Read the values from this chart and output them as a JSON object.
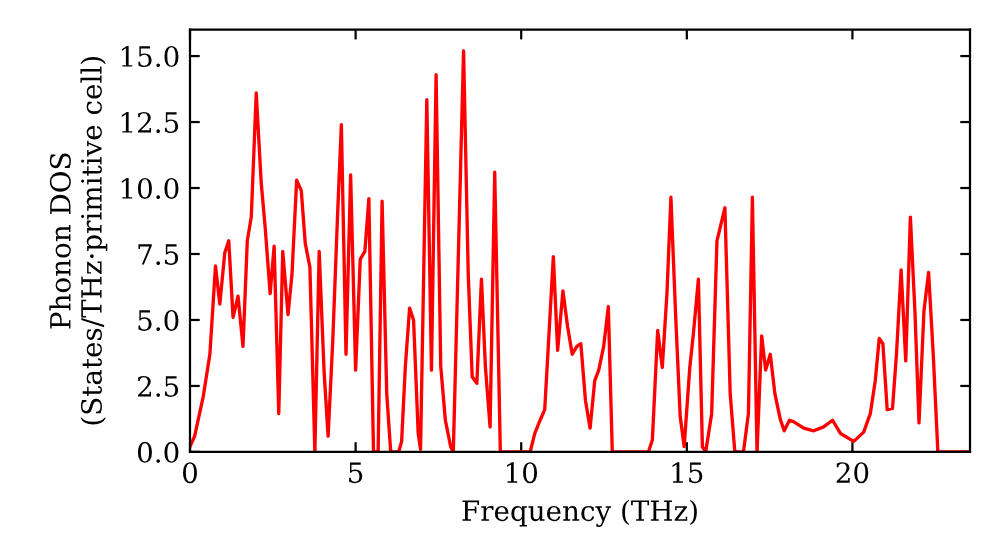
{
  "chart_data": {
    "type": "line",
    "xlabel": "Frequency (THz)",
    "ylabel": "Phonon DOS\n(States/THz·primitive cell)",
    "xlim": [
      0,
      23.55
    ],
    "ylim": [
      0,
      16
    ],
    "xticks": [
      0,
      5,
      10,
      15,
      20
    ],
    "yticks": [
      {
        "value": 0,
        "label": "0.0"
      },
      {
        "value": 2.5,
        "label": "2.5"
      },
      {
        "value": 5,
        "label": "5.0"
      },
      {
        "value": 7.5,
        "label": "7.5"
      },
      {
        "value": 10,
        "label": "10.0"
      },
      {
        "value": 12.5,
        "label": "12.5"
      },
      {
        "value": 15,
        "label": "15.0"
      }
    ],
    "grid": false,
    "marker": "none",
    "line_style": "solid",
    "series": [
      {
        "color": "#ff0000",
        "x": [
          0,
          0.14,
          0.4,
          0.6,
          0.77,
          0.9,
          1.05,
          1.17,
          1.3,
          1.45,
          1.6,
          1.73,
          1.85,
          2.0,
          2.15,
          2.27,
          2.42,
          2.54,
          2.68,
          2.8,
          2.96,
          3.08,
          3.22,
          3.36,
          3.48,
          3.62,
          3.77,
          3.9,
          4.05,
          4.17,
          4.31,
          4.45,
          4.57,
          4.71,
          4.85,
          5.0,
          5.14,
          5.28,
          5.4,
          5.54,
          5.68,
          5.8,
          5.94,
          6.06,
          6.3,
          6.39,
          6.5,
          6.63,
          6.75,
          6.89,
          6.96,
          7.15,
          7.29,
          7.43,
          7.57,
          7.71,
          7.87,
          7.95,
          8.26,
          8.4,
          8.52,
          8.66,
          8.8,
          8.92,
          9.06,
          9.2,
          9.37,
          10.27,
          10.41,
          10.57,
          10.71,
          10.97,
          11.1,
          11.26,
          11.4,
          11.54,
          11.68,
          11.8,
          11.94,
          12.08,
          12.22,
          12.34,
          12.49,
          12.63,
          12.75,
          13.84,
          13.96,
          14.12,
          14.26,
          14.4,
          14.52,
          14.66,
          14.8,
          14.92,
          15.09,
          15.2,
          15.35,
          15.47,
          15.57,
          15.75,
          15.91,
          16.15,
          16.31,
          16.45,
          16.71,
          16.86,
          16.98,
          17.12,
          17.26,
          17.38,
          17.52,
          17.66,
          17.82,
          17.94,
          18.1,
          18.22,
          18.53,
          18.83,
          19.13,
          19.4,
          19.64,
          20.04,
          20.34,
          20.54,
          20.69,
          20.81,
          20.92,
          21.05,
          21.21,
          21.33,
          21.47,
          21.61,
          21.75,
          21.89,
          22.01,
          22.16,
          22.3,
          22.44,
          22.58,
          23.55
        ],
        "values": [
          0.2,
          0.6,
          2.1,
          3.7,
          7.05,
          5.6,
          7.55,
          8.0,
          5.1,
          5.9,
          4.0,
          8.0,
          8.9,
          13.6,
          10.2,
          8.5,
          6.0,
          7.8,
          1.45,
          7.6,
          5.2,
          6.75,
          10.3,
          9.9,
          7.9,
          7.0,
          0,
          7.6,
          3.0,
          0.6,
          4.2,
          8.8,
          12.4,
          3.7,
          10.5,
          3.1,
          7.3,
          7.6,
          9.6,
          0,
          0,
          9.5,
          2.2,
          0,
          0,
          0.4,
          3.2,
          5.45,
          5.0,
          0.7,
          0.1,
          13.35,
          3.1,
          14.3,
          3.25,
          1.2,
          0.2,
          0,
          15.2,
          6.75,
          2.85,
          2.6,
          6.55,
          3.2,
          0.95,
          10.6,
          0,
          0,
          0.7,
          1.2,
          1.6,
          7.4,
          3.85,
          6.1,
          4.75,
          3.7,
          4.0,
          4.1,
          1.95,
          0.9,
          2.7,
          3.1,
          4.0,
          5.5,
          0,
          0,
          0.45,
          4.6,
          3.2,
          6.0,
          9.65,
          5.25,
          1.35,
          0.2,
          3.2,
          4.5,
          6.55,
          0.2,
          0,
          1.45,
          8.0,
          9.25,
          2.2,
          0,
          0,
          1.45,
          9.65,
          0,
          4.4,
          3.1,
          3.7,
          2.2,
          1.25,
          0.8,
          1.2,
          1.15,
          0.9,
          0.8,
          0.95,
          1.2,
          0.7,
          0.4,
          0.75,
          1.45,
          2.7,
          4.3,
          4.1,
          1.6,
          1.65,
          3.7,
          6.9,
          3.45,
          8.9,
          5.25,
          1.1,
          5.35,
          6.8,
          3.7,
          0,
          0
        ]
      }
    ]
  }
}
